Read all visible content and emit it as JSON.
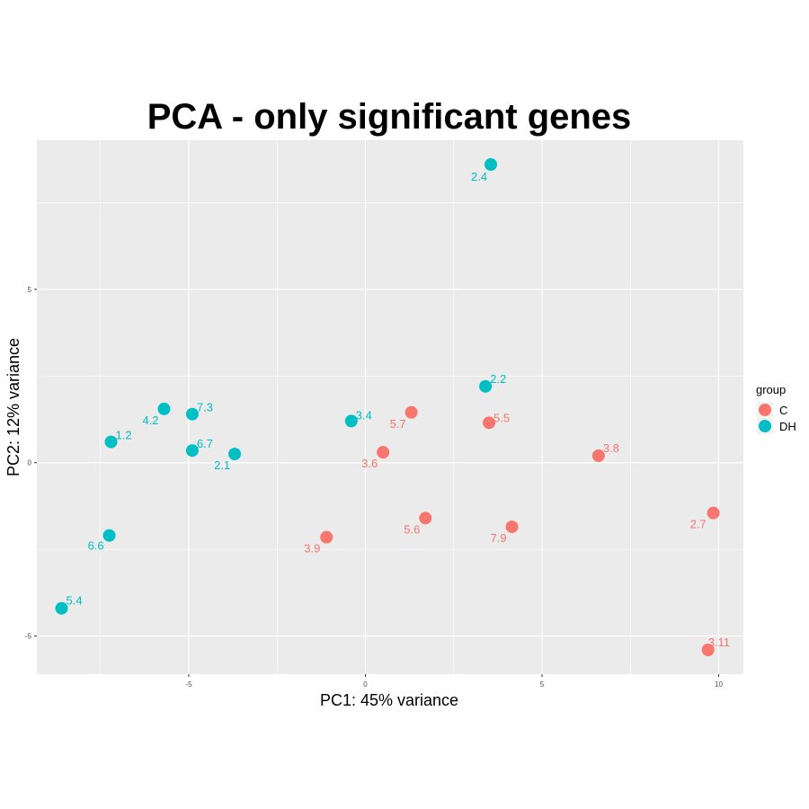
{
  "chart_data": {
    "type": "scatter",
    "title": "PCA - only significant genes",
    "xlabel": "PC1: 45% variance",
    "ylabel": "PC2: 12% variance",
    "xlim": [
      -9.3,
      10.7
    ],
    "ylim": [
      -6.1,
      9.3
    ],
    "x_ticks": [
      -5,
      0,
      5,
      10
    ],
    "y_ticks": [
      -5,
      0,
      5
    ],
    "x_tick_labels": [
      "-5",
      "0",
      "5",
      "10"
    ],
    "y_tick_labels": [
      "-5",
      "0",
      "5"
    ],
    "grid": true,
    "legend": {
      "title": "group",
      "position": "right"
    },
    "series": [
      {
        "name": "C",
        "color": "#F8766D",
        "points": [
          {
            "label": "5.7",
            "x": 1.3,
            "y": 1.45
          },
          {
            "label": "5.5",
            "x": 3.5,
            "y": 1.15
          },
          {
            "label": "3.6",
            "x": 0.5,
            "y": 0.3
          },
          {
            "label": "3.8",
            "x": 6.6,
            "y": 0.2
          },
          {
            "label": "5.6",
            "x": 1.7,
            "y": -1.6
          },
          {
            "label": "7.9",
            "x": 4.15,
            "y": -1.85
          },
          {
            "label": "3.9",
            "x": -1.1,
            "y": -2.15
          },
          {
            "label": "2.7",
            "x": 9.85,
            "y": -1.45
          },
          {
            "label": "3.11",
            "x": 9.7,
            "y": -5.4
          }
        ]
      },
      {
        "name": "DH",
        "color": "#00BFC4",
        "points": [
          {
            "label": "2.4",
            "x": 3.55,
            "y": 8.6
          },
          {
            "label": "2.2",
            "x": 3.4,
            "y": 2.2
          },
          {
            "label": "3.4",
            "x": -0.4,
            "y": 1.2
          },
          {
            "label": "7.3",
            "x": -4.9,
            "y": 1.4
          },
          {
            "label": "4.2",
            "x": -5.7,
            "y": 1.55
          },
          {
            "label": "1.2",
            "x": -7.2,
            "y": 0.6
          },
          {
            "label": "6.7",
            "x": -4.9,
            "y": 0.35
          },
          {
            "label": "2.1",
            "x": -3.7,
            "y": 0.25
          },
          {
            "label": "6.6",
            "x": -7.25,
            "y": -2.1
          },
          {
            "label": "5.4",
            "x": -8.6,
            "y": -4.2
          }
        ]
      }
    ]
  }
}
